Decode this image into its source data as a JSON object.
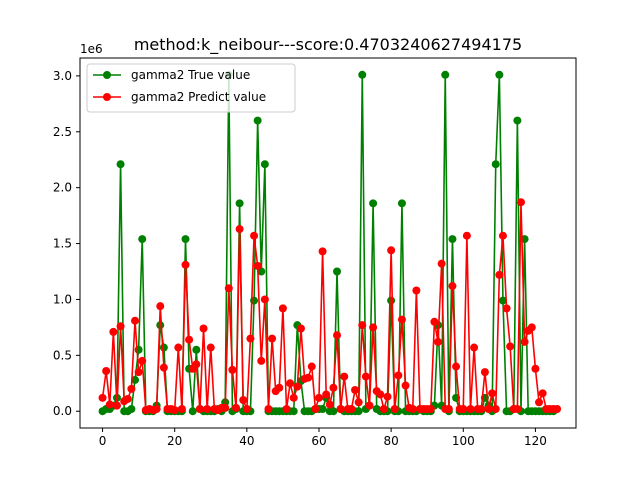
{
  "chart_data": {
    "type": "line",
    "title": "method:k_neibour---score:0.4703240627494175",
    "xlabel": "",
    "ylabel": "",
    "offset_label": "1e6",
    "xlim": [
      -6.25,
      131.25
    ],
    "ylim": [
      -0.15,
      3.16
    ],
    "x_ticks": [
      0,
      20,
      40,
      60,
      80,
      100,
      120
    ],
    "y_ticks": [
      0.0,
      0.5,
      1.0,
      1.5,
      2.0,
      2.5,
      3.0
    ],
    "y_tick_labels": [
      "0.0",
      "0.5",
      "1.0",
      "1.5",
      "2.0",
      "2.5",
      "3.0"
    ],
    "grid": false,
    "legend_position": "upper-left",
    "series": [
      {
        "name": "gamma2 True value",
        "color": "#008000",
        "values": [
          0,
          0.02,
          0.02,
          0.05,
          0.12,
          2.21,
          0,
          0,
          0.02,
          0.28,
          0.55,
          1.54,
          0,
          0,
          0,
          0.05,
          0.77,
          0.57,
          0,
          0,
          0,
          0,
          0,
          1.54,
          0.38,
          0,
          0.55,
          0.02,
          0,
          0,
          0,
          0,
          0.02,
          0,
          0.08,
          3.01,
          0,
          0.02,
          1.86,
          0,
          0,
          0,
          0.99,
          2.6,
          1.25,
          2.21,
          0,
          0,
          0,
          0,
          0,
          0,
          0,
          0,
          0.77,
          0.27,
          0,
          0,
          0,
          0.02,
          0.02,
          0.02,
          0.12,
          0,
          0,
          1.25,
          0.02,
          0,
          0,
          0,
          0,
          0,
          3.01,
          0.02,
          0.05,
          1.86,
          0.02,
          0,
          0,
          0,
          0.99,
          0,
          0,
          1.86,
          0,
          0,
          0,
          0,
          0.02,
          0,
          0,
          0,
          0.05,
          0.77,
          0.05,
          3.01,
          0,
          1.54,
          0.12,
          0,
          0,
          0,
          0,
          0,
          0,
          0,
          0.12,
          0.05,
          0,
          2.21,
          3.01,
          0.99,
          0,
          0,
          0.02,
          2.6,
          0,
          1.54,
          0,
          0,
          0,
          0,
          0,
          0,
          0,
          0
        ],
        "predicted": false
      },
      {
        "name": "gamma2 Predict value",
        "color": "#ff0000",
        "values": [
          0.12,
          0.36,
          0.06,
          0.71,
          0.05,
          0.76,
          0.09,
          0.11,
          0.2,
          0.81,
          0.35,
          0.45,
          0.01,
          0.02,
          0.01,
          0.02,
          0.94,
          0.39,
          0.02,
          0.02,
          0.01,
          0.57,
          0.02,
          1.31,
          0.64,
          0.38,
          0.42,
          0.02,
          0.74,
          0.02,
          0.57,
          0.02,
          0.01,
          0.03,
          0.03,
          1.1,
          0.37,
          0.03,
          1.63,
          0.1,
          0.02,
          0.65,
          1.57,
          1.3,
          0.45,
          1.0,
          0.02,
          0.65,
          0.18,
          0.21,
          0.92,
          0.02,
          0.25,
          0.12,
          0.22,
          0.74,
          0.29,
          0.3,
          0.4,
          0.02,
          0.12,
          1.43,
          0.15,
          0.06,
          0.21,
          0.68,
          0.02,
          0.31,
          0.02,
          0.02,
          0.19,
          0.08,
          0.77,
          0.31,
          0.05,
          0.75,
          0.18,
          0.15,
          0.02,
          0.13,
          1.44,
          0.02,
          0.32,
          0.82,
          0.23,
          0.03,
          0.02,
          1.08,
          0.02,
          0.02,
          0.02,
          0.02,
          0.8,
          0.62,
          1.32,
          0.02,
          0.02,
          1.12,
          0.4,
          0.02,
          0.02,
          1.57,
          0.02,
          0.57,
          0.02,
          0.02,
          0.35,
          0.02,
          0.16,
          0.02,
          1.22,
          1.57,
          0.92,
          0.58,
          0.02,
          0.02,
          1.87,
          0.62,
          0.72,
          0.75,
          0.38,
          0.08,
          0.16,
          0.02,
          0.02,
          0.02,
          0.02
        ]
      }
    ]
  }
}
